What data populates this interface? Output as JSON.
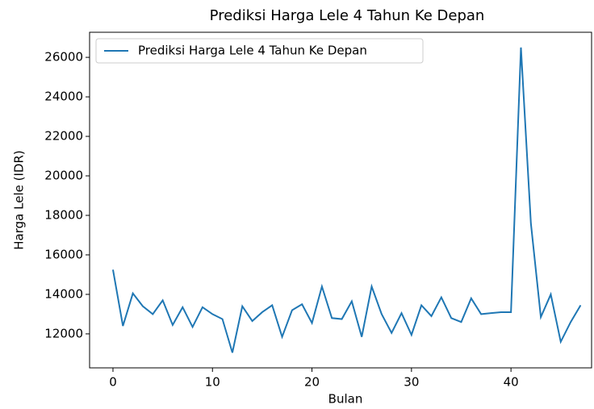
{
  "chart_data": {
    "type": "line",
    "title": "Prediksi Harga Lele 4 Tahun Ke Depan",
    "xlabel": "Bulan",
    "ylabel": "Harga Lele (IDR)",
    "x": [
      0,
      1,
      2,
      3,
      4,
      5,
      6,
      7,
      8,
      9,
      10,
      11,
      12,
      13,
      14,
      15,
      16,
      17,
      18,
      19,
      20,
      21,
      22,
      23,
      24,
      25,
      26,
      27,
      28,
      29,
      30,
      31,
      32,
      33,
      34,
      35,
      36,
      37,
      38,
      39,
      40,
      41,
      42,
      43,
      44,
      45,
      46,
      47
    ],
    "series": [
      {
        "name": "Prediksi Harga Lele 4 Tahun Ke Depan",
        "color": "#1f77b4",
        "values": [
          15250,
          12400,
          14050,
          13400,
          13000,
          13700,
          12450,
          13350,
          12350,
          13350,
          13000,
          12750,
          11050,
          13400,
          12650,
          13100,
          13450,
          11850,
          13200,
          13500,
          12550,
          14400,
          12800,
          12750,
          13650,
          11850,
          14400,
          13000,
          12050,
          13050,
          11950,
          13450,
          12900,
          13850,
          12800,
          12600,
          13800,
          13000,
          13050,
          13100,
          13100,
          26500,
          17600,
          12850,
          14000,
          11600,
          12600,
          13450
        ]
      }
    ],
    "xlim": [
      -2.35,
      48.1
    ],
    "ylim": [
      10280,
      27270
    ],
    "xticks": [
      0,
      10,
      20,
      30,
      40
    ],
    "yticks": [
      12000,
      14000,
      16000,
      18000,
      20000,
      22000,
      24000,
      26000
    ],
    "legend": "upper left"
  }
}
